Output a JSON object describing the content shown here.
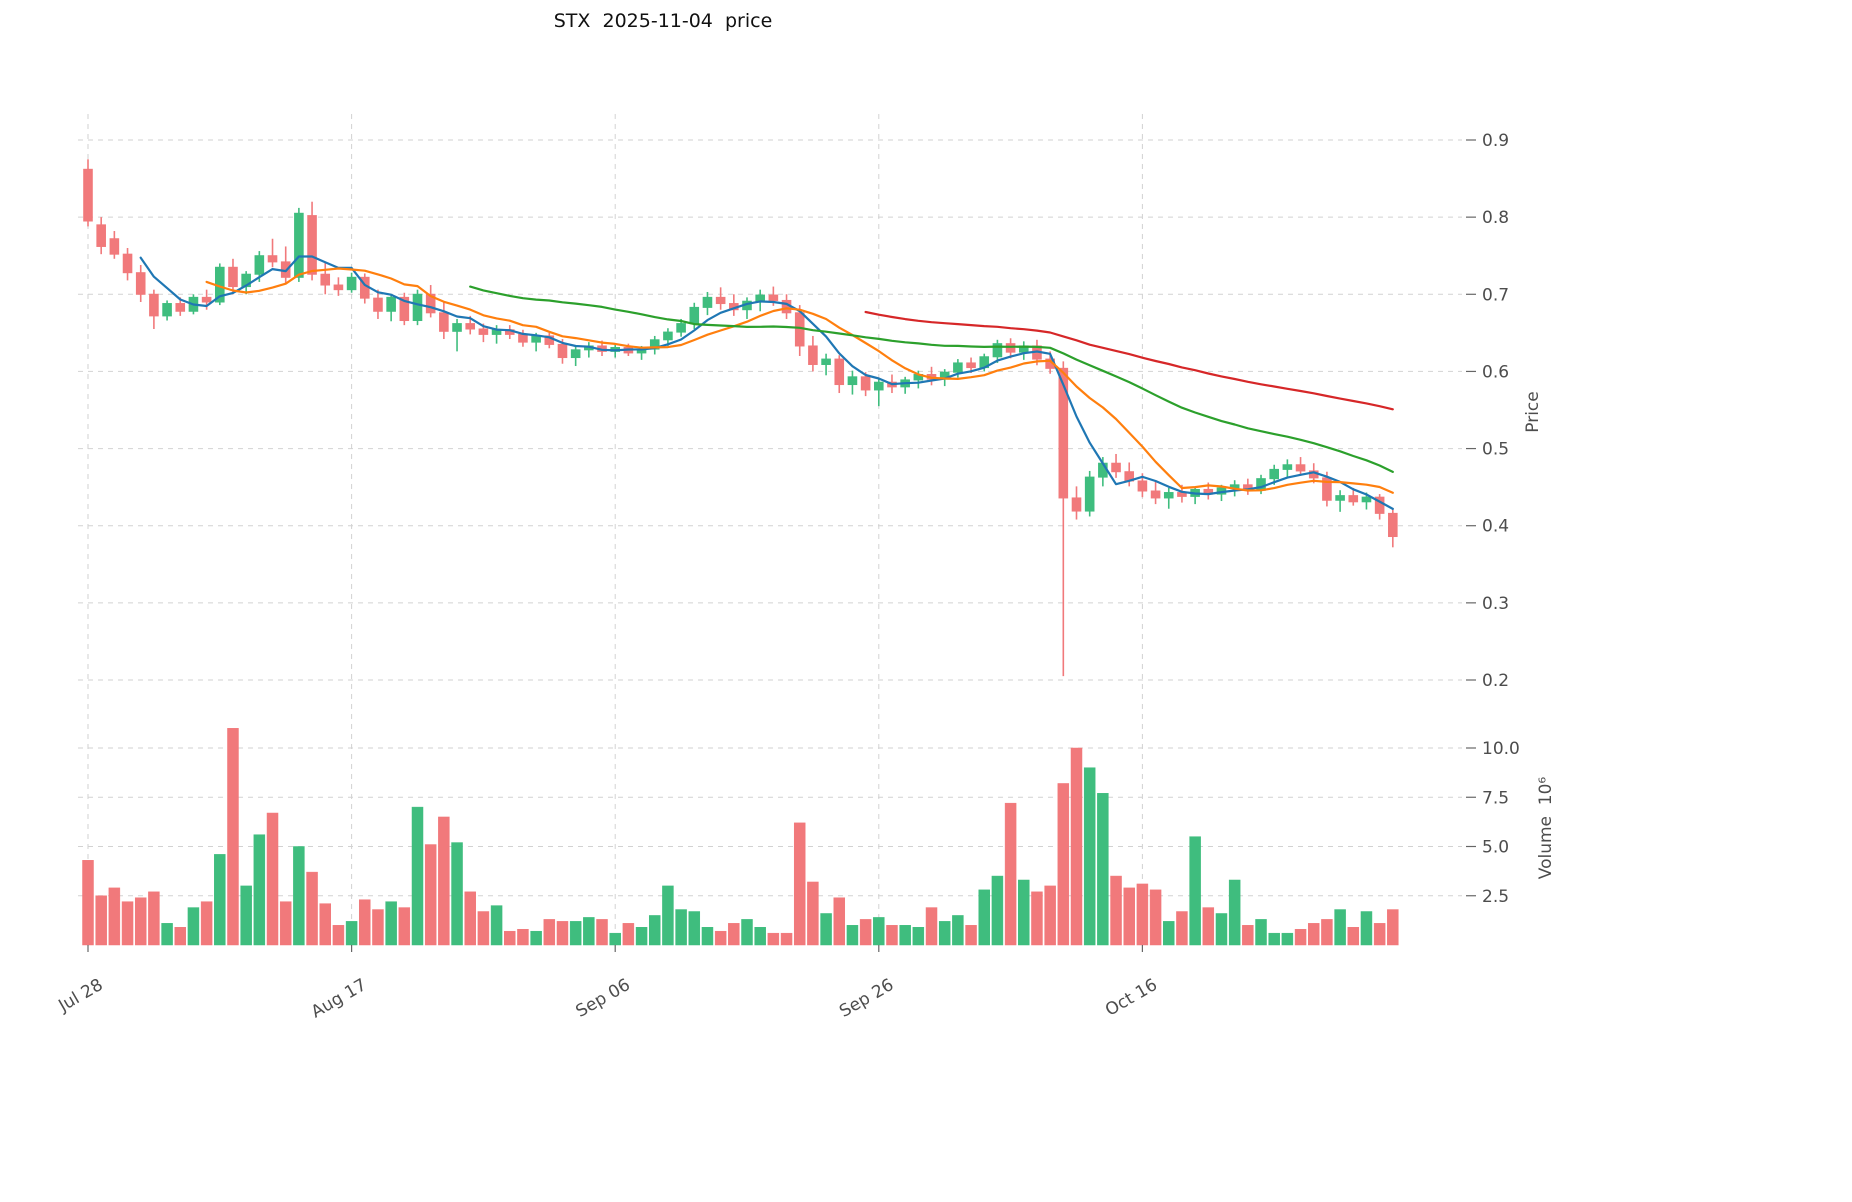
{
  "title": "STX  2025-11-04  price",
  "axes": {
    "price_label": "Price",
    "volume_label": "Volume  10⁶",
    "price_ticks": [
      "0.9",
      "0.8",
      "0.7",
      "0.6",
      "0.5",
      "0.4",
      "0.3",
      "0.2"
    ],
    "volume_ticks": [
      "10.0",
      "7.5",
      "5.0",
      "2.5"
    ],
    "x_ticks": [
      {
        "index": 0,
        "label": "Jul 28"
      },
      {
        "index": 20,
        "label": "Aug 17"
      },
      {
        "index": 40,
        "label": "Sep 06"
      },
      {
        "index": 60,
        "label": "Sep 26"
      },
      {
        "index": 80,
        "label": "Oct 16"
      }
    ]
  },
  "colors": {
    "up": "#3fbd7e",
    "down": "#f1797b",
    "grid": "#d2d2d2",
    "tick_text": "#4d4d4d",
    "tick_mark": "#666666",
    "title_text": "#111111"
  },
  "chart_data": {
    "type": "candlestick+volume",
    "title": "STX  2025-11-04  price",
    "ylabel": "Price",
    "ylabel_lower": "Volume  10⁶",
    "price_axis_range": [
      0.2,
      0.9
    ],
    "volume_axis_range_millions": [
      0,
      11
    ],
    "grid": "dashed",
    "moving_averages": [
      {
        "period": 5,
        "color": "#1f77b4"
      },
      {
        "period": 10,
        "color": "#ff7f0e"
      },
      {
        "period": 30,
        "color": "#2ca02c"
      },
      {
        "period": 60,
        "color": "#d62728"
      }
    ],
    "columns": [
      "date",
      "open",
      "high",
      "low",
      "close",
      "volume_millions"
    ],
    "candles": [
      [
        "2025-07-28",
        0.862,
        0.875,
        0.788,
        0.795,
        4.3
      ],
      [
        "2025-07-29",
        0.79,
        0.8,
        0.752,
        0.762,
        2.5
      ],
      [
        "2025-07-30",
        0.772,
        0.782,
        0.746,
        0.752,
        2.9
      ],
      [
        "2025-07-31",
        0.752,
        0.76,
        0.718,
        0.728,
        2.2
      ],
      [
        "2025-08-01",
        0.728,
        0.738,
        0.69,
        0.7,
        2.4
      ],
      [
        "2025-08-02",
        0.7,
        0.706,
        0.655,
        0.672,
        2.7
      ],
      [
        "2025-08-03",
        0.672,
        0.692,
        0.666,
        0.688,
        1.1
      ],
      [
        "2025-08-04",
        0.688,
        0.696,
        0.672,
        0.678,
        0.9
      ],
      [
        "2025-08-05",
        0.678,
        0.7,
        0.674,
        0.696,
        1.9
      ],
      [
        "2025-08-06",
        0.696,
        0.706,
        0.68,
        0.69,
        2.2
      ],
      [
        "2025-08-07",
        0.69,
        0.74,
        0.686,
        0.735,
        4.6
      ],
      [
        "2025-08-08",
        0.735,
        0.746,
        0.7,
        0.71,
        11.0
      ],
      [
        "2025-08-09",
        0.71,
        0.73,
        0.7,
        0.726,
        3.0
      ],
      [
        "2025-08-10",
        0.726,
        0.756,
        0.716,
        0.75,
        5.6
      ],
      [
        "2025-08-11",
        0.75,
        0.772,
        0.735,
        0.742,
        6.7
      ],
      [
        "2025-08-12",
        0.742,
        0.762,
        0.714,
        0.722,
        2.2
      ],
      [
        "2025-08-13",
        0.722,
        0.812,
        0.716,
        0.805,
        5.0
      ],
      [
        "2025-08-14",
        0.802,
        0.82,
        0.718,
        0.726,
        3.7
      ],
      [
        "2025-08-15",
        0.726,
        0.742,
        0.7,
        0.712,
        2.1
      ],
      [
        "2025-08-16",
        0.712,
        0.722,
        0.698,
        0.706,
        1.0
      ],
      [
        "2025-08-17",
        0.706,
        0.728,
        0.702,
        0.722,
        1.2
      ],
      [
        "2025-08-18",
        0.722,
        0.727,
        0.688,
        0.695,
        2.3
      ],
      [
        "2025-08-19",
        0.695,
        0.706,
        0.668,
        0.678,
        1.8
      ],
      [
        "2025-08-20",
        0.678,
        0.7,
        0.665,
        0.696,
        2.2
      ],
      [
        "2025-08-21",
        0.696,
        0.702,
        0.66,
        0.666,
        1.9
      ],
      [
        "2025-08-22",
        0.666,
        0.706,
        0.66,
        0.7,
        7.0
      ],
      [
        "2025-08-23",
        0.7,
        0.712,
        0.67,
        0.676,
        5.1
      ],
      [
        "2025-08-24",
        0.676,
        0.69,
        0.642,
        0.652,
        6.5
      ],
      [
        "2025-08-25",
        0.652,
        0.668,
        0.626,
        0.662,
        5.2
      ],
      [
        "2025-08-26",
        0.662,
        0.672,
        0.648,
        0.655,
        2.7
      ],
      [
        "2025-08-27",
        0.655,
        0.662,
        0.638,
        0.648,
        1.7
      ],
      [
        "2025-08-28",
        0.648,
        0.66,
        0.636,
        0.654,
        2.0
      ],
      [
        "2025-08-29",
        0.654,
        0.66,
        0.642,
        0.648,
        0.7
      ],
      [
        "2025-08-30",
        0.648,
        0.654,
        0.632,
        0.638,
        0.8
      ],
      [
        "2025-08-31",
        0.638,
        0.65,
        0.626,
        0.646,
        0.7
      ],
      [
        "2025-09-01",
        0.646,
        0.65,
        0.63,
        0.635,
        1.3
      ],
      [
        "2025-09-02",
        0.635,
        0.642,
        0.61,
        0.618,
        1.2
      ],
      [
        "2025-09-03",
        0.618,
        0.633,
        0.607,
        0.628,
        1.2
      ],
      [
        "2025-09-04",
        0.628,
        0.638,
        0.618,
        0.633,
        1.4
      ],
      [
        "2025-09-05",
        0.633,
        0.64,
        0.62,
        0.626,
        1.3
      ],
      [
        "2025-09-06",
        0.626,
        0.636,
        0.618,
        0.631,
        0.6
      ],
      [
        "2025-09-07",
        0.631,
        0.636,
        0.62,
        0.624,
        1.1
      ],
      [
        "2025-09-08",
        0.624,
        0.633,
        0.615,
        0.629,
        0.9
      ],
      [
        "2025-09-09",
        0.629,
        0.646,
        0.622,
        0.641,
        1.5
      ],
      [
        "2025-09-10",
        0.641,
        0.656,
        0.633,
        0.651,
        3.0
      ],
      [
        "2025-09-11",
        0.651,
        0.668,
        0.645,
        0.662,
        1.8
      ],
      [
        "2025-09-12",
        0.662,
        0.689,
        0.655,
        0.683,
        1.7
      ],
      [
        "2025-09-13",
        0.683,
        0.703,
        0.673,
        0.696,
        0.9
      ],
      [
        "2025-09-14",
        0.696,
        0.709,
        0.68,
        0.688,
        0.7
      ],
      [
        "2025-09-15",
        0.688,
        0.7,
        0.672,
        0.68,
        1.1
      ],
      [
        "2025-09-16",
        0.68,
        0.696,
        0.668,
        0.691,
        1.3
      ],
      [
        "2025-09-17",
        0.691,
        0.706,
        0.678,
        0.699,
        0.9
      ],
      [
        "2025-09-18",
        0.699,
        0.71,
        0.685,
        0.692,
        0.6
      ],
      [
        "2025-09-19",
        0.692,
        0.7,
        0.668,
        0.676,
        0.6
      ],
      [
        "2025-09-20",
        0.676,
        0.686,
        0.62,
        0.633,
        6.2
      ],
      [
        "2025-09-21",
        0.633,
        0.646,
        0.6,
        0.609,
        3.2
      ],
      [
        "2025-09-22",
        0.609,
        0.623,
        0.595,
        0.616,
        1.6
      ],
      [
        "2025-09-23",
        0.616,
        0.621,
        0.572,
        0.583,
        2.4
      ],
      [
        "2025-09-24",
        0.583,
        0.601,
        0.57,
        0.593,
        1.0
      ],
      [
        "2025-09-25",
        0.593,
        0.599,
        0.568,
        0.576,
        1.3
      ],
      [
        "2025-09-26",
        0.576,
        0.591,
        0.555,
        0.586,
        1.4
      ],
      [
        "2025-09-27",
        0.586,
        0.596,
        0.572,
        0.58,
        1.0
      ],
      [
        "2025-09-28",
        0.58,
        0.593,
        0.571,
        0.589,
        1.0
      ],
      [
        "2025-09-29",
        0.589,
        0.601,
        0.578,
        0.596,
        0.9
      ],
      [
        "2025-09-30",
        0.596,
        0.606,
        0.582,
        0.59,
        1.9
      ],
      [
        "2025-10-01",
        0.59,
        0.603,
        0.581,
        0.599,
        1.2
      ],
      [
        "2025-10-02",
        0.599,
        0.616,
        0.592,
        0.611,
        1.5
      ],
      [
        "2025-10-03",
        0.611,
        0.618,
        0.598,
        0.605,
        1.0
      ],
      [
        "2025-10-04",
        0.605,
        0.623,
        0.6,
        0.619,
        2.8
      ],
      [
        "2025-10-05",
        0.619,
        0.641,
        0.611,
        0.636,
        3.5
      ],
      [
        "2025-10-06",
        0.636,
        0.643,
        0.617,
        0.625,
        7.2
      ],
      [
        "2025-10-07",
        0.625,
        0.639,
        0.615,
        0.633,
        3.3
      ],
      [
        "2025-10-08",
        0.633,
        0.641,
        0.608,
        0.616,
        2.7
      ],
      [
        "2025-10-09",
        0.616,
        0.626,
        0.597,
        0.604,
        3.0
      ],
      [
        "2025-10-10",
        0.604,
        0.613,
        0.205,
        0.436,
        8.2
      ],
      [
        "2025-10-11",
        0.436,
        0.451,
        0.408,
        0.419,
        10.0
      ],
      [
        "2025-10-12",
        0.419,
        0.471,
        0.412,
        0.463,
        9.0
      ],
      [
        "2025-10-13",
        0.463,
        0.489,
        0.451,
        0.481,
        7.7
      ],
      [
        "2025-10-14",
        0.481,
        0.493,
        0.462,
        0.47,
        3.5
      ],
      [
        "2025-10-15",
        0.47,
        0.482,
        0.451,
        0.458,
        2.9
      ],
      [
        "2025-10-16",
        0.458,
        0.468,
        0.437,
        0.445,
        3.1
      ],
      [
        "2025-10-17",
        0.445,
        0.459,
        0.428,
        0.436,
        2.8
      ],
      [
        "2025-10-18",
        0.436,
        0.449,
        0.422,
        0.443,
        1.2
      ],
      [
        "2025-10-19",
        0.443,
        0.453,
        0.43,
        0.438,
        1.7
      ],
      [
        "2025-10-20",
        0.438,
        0.451,
        0.428,
        0.447,
        5.5
      ],
      [
        "2025-10-21",
        0.447,
        0.456,
        0.434,
        0.441,
        1.9
      ],
      [
        "2025-10-22",
        0.441,
        0.453,
        0.432,
        0.449,
        1.6
      ],
      [
        "2025-10-23",
        0.449,
        0.459,
        0.438,
        0.453,
        3.3
      ],
      [
        "2025-10-24",
        0.453,
        0.461,
        0.44,
        0.446,
        1.0
      ],
      [
        "2025-10-25",
        0.446,
        0.466,
        0.441,
        0.461,
        1.3
      ],
      [
        "2025-10-26",
        0.461,
        0.479,
        0.453,
        0.473,
        0.6
      ],
      [
        "2025-10-27",
        0.473,
        0.486,
        0.462,
        0.479,
        0.6
      ],
      [
        "2025-10-28",
        0.479,
        0.489,
        0.465,
        0.471,
        0.8
      ],
      [
        "2025-10-29",
        0.471,
        0.481,
        0.455,
        0.462,
        1.1
      ],
      [
        "2025-10-30",
        0.462,
        0.47,
        0.425,
        0.433,
        1.3
      ],
      [
        "2025-10-31",
        0.433,
        0.446,
        0.418,
        0.439,
        1.8
      ],
      [
        "2025-11-01",
        0.439,
        0.449,
        0.426,
        0.431,
        0.9
      ],
      [
        "2025-11-02",
        0.431,
        0.443,
        0.421,
        0.437,
        1.7
      ],
      [
        "2025-11-03",
        0.437,
        0.441,
        0.408,
        0.416,
        1.1
      ],
      [
        "2025-11-04",
        0.416,
        0.423,
        0.372,
        0.386,
        1.8
      ]
    ]
  }
}
